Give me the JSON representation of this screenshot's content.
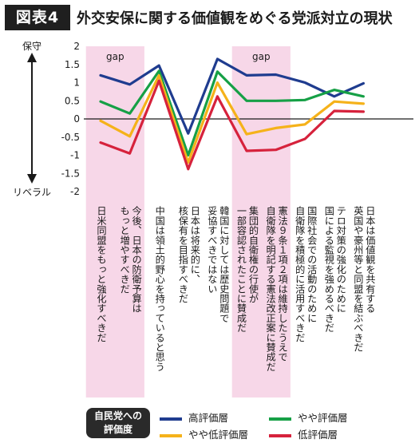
{
  "header": {
    "badge": "図表4",
    "title": "外交安保に関する価値観をめぐる党派対立の現状"
  },
  "axis_labels": {
    "top": "保守",
    "bottom": "リベラル"
  },
  "gap_label": "gap",
  "legend": {
    "title": "自民党への評価度"
  },
  "colors": {
    "high": "#1f3c8f",
    "mid": "#16a046",
    "low_mid": "#f5b21a",
    "low": "#d6223c",
    "band": "#f7d7e8"
  },
  "chart_data": {
    "type": "line",
    "ylim": [
      -2,
      2
    ],
    "y_ticks": [
      2,
      1.5,
      1,
      0.5,
      0,
      -0.5,
      -1,
      -1.5,
      -2
    ],
    "y_tick_labels": [
      "2",
      "1.5",
      "1",
      "0.5",
      "0",
      "-0.5",
      "-1",
      "-1.5",
      "-2"
    ],
    "gap_bands": [
      [
        0,
        1
      ],
      [
        5,
        6
      ]
    ],
    "categories": [
      [
        "日米同盟をもっと強化すべきだ"
      ],
      [
        "今後、日本の防衛予算は",
        "もっと増やすべきだ"
      ],
      [
        "中国は領土的野心を持っていると思う"
      ],
      [
        "日本は将来的に、",
        "核保有を目指すべきだ"
      ],
      [
        "韓国に対しては歴史問題で",
        "妥協すべきではない"
      ],
      [
        "集団的自衛権の行使が",
        "一部容認されたことに賛成だ"
      ],
      [
        "憲法９条１項２項は維持したうえで",
        "自衛隊を明記する憲法改正案に賛成だ"
      ],
      [
        "国際社会での活動のために",
        "自衛隊を積極的に活用すべきだ"
      ],
      [
        "テロ対策の強化のために",
        "国による監視を強めるべきだ"
      ],
      [
        "日本は価値観を共有する",
        "英国や豪州等と同盟を結ぶべきだ"
      ]
    ],
    "series": [
      {
        "name": "高評価層",
        "color": "#1f3c8f",
        "values": [
          1.2,
          0.95,
          1.47,
          -0.4,
          1.65,
          1.2,
          1.22,
          1.0,
          0.62,
          0.98
        ]
      },
      {
        "name": "やや評価層",
        "color": "#16a046",
        "values": [
          0.48,
          0.15,
          1.32,
          -1.0,
          1.3,
          0.5,
          0.5,
          0.52,
          0.8,
          0.62
        ]
      },
      {
        "name": "やや低評価層",
        "color": "#f5b21a",
        "values": [
          -0.05,
          -0.48,
          1.2,
          -1.2,
          1.0,
          -0.42,
          -0.25,
          -0.15,
          0.48,
          0.42
        ]
      },
      {
        "name": "低評価層",
        "color": "#d6223c",
        "values": [
          -0.65,
          -0.95,
          1.05,
          -1.38,
          0.62,
          -0.88,
          -0.85,
          -0.55,
          0.22,
          0.2
        ]
      }
    ]
  }
}
